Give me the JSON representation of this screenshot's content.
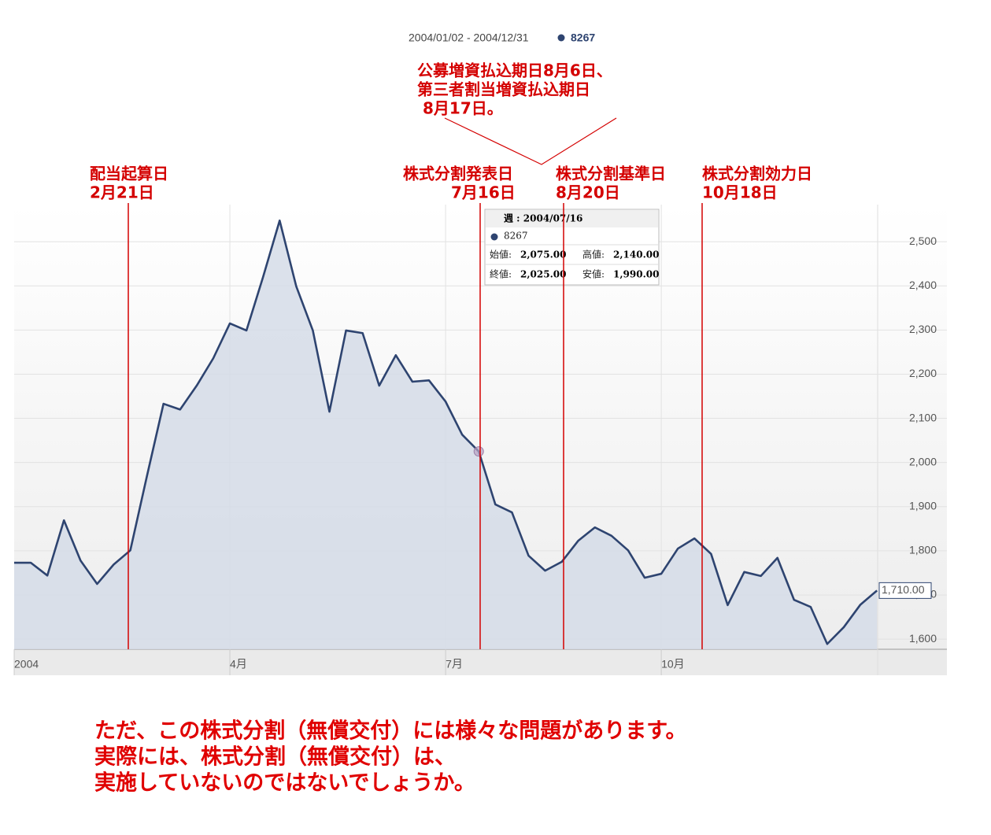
{
  "chart_data": {
    "type": "area",
    "subtitle": "2004/01/02 - 2004/12/31",
    "categories": [
      "2004",
      null,
      null,
      null,
      null,
      null,
      null,
      null,
      null,
      null,
      null,
      null,
      null,
      "4月",
      null,
      null,
      null,
      null,
      null,
      null,
      null,
      null,
      null,
      null,
      null,
      null,
      "7月",
      null,
      null,
      null,
      null,
      null,
      null,
      null,
      null,
      null,
      null,
      null,
      null,
      "10月",
      null,
      null,
      null,
      null,
      null,
      null,
      null,
      null,
      null,
      null,
      null,
      null,
      null
    ],
    "series": [
      {
        "name": "8267",
        "color": "#2e4470",
        "fill": "#d5dce7",
        "values": [
          1773,
          1773,
          1744,
          1869,
          1778,
          1725,
          1769,
          1801,
          1969,
          2133,
          2120,
          2174,
          2236,
          2315,
          2299,
          2420,
          2548,
          2399,
          2299,
          2115,
          2299,
          2293,
          2174,
          2243,
          2183,
          2186,
          2138,
          2063,
          2025,
          1905,
          1887,
          1789,
          1755,
          1775,
          1823,
          1853,
          1834,
          1801,
          1739,
          1748,
          1805,
          1828,
          1793,
          1677,
          1752,
          1743,
          1784,
          1689,
          1673,
          1589,
          1627,
          1678,
          1710
        ],
        "value_labels": [
          null,
          null,
          null,
          null,
          null,
          null,
          null,
          null,
          null,
          null,
          null,
          null,
          null,
          null,
          null,
          null,
          null,
          null,
          null,
          null,
          null,
          null,
          null,
          null,
          null,
          null,
          null,
          null,
          null,
          null,
          null,
          null,
          null,
          null,
          null,
          null,
          null,
          null,
          null,
          null,
          null,
          null,
          null,
          null,
          null,
          null,
          null,
          null,
          null,
          null,
          null,
          null,
          "1,710.00"
        ]
      }
    ],
    "ylim": [
      1577,
      2584
    ],
    "yticks": [
      {
        "value": 1600,
        "label": "1,600"
      },
      {
        "value": 1700,
        "label": "1,700"
      },
      {
        "value": 1800,
        "label": "1,800"
      },
      {
        "value": 1900,
        "label": "1,900"
      },
      {
        "value": 2000,
        "label": "2,000"
      },
      {
        "value": 2100,
        "label": "2,100"
      },
      {
        "value": 2200,
        "label": "2,200"
      },
      {
        "value": 2300,
        "label": "2,300"
      },
      {
        "value": 2400,
        "label": "2,400"
      },
      {
        "value": 2500,
        "label": "2,500"
      }
    ],
    "grid": true,
    "tooltip": {
      "title": "週 : 2004/07/16",
      "series": "8267",
      "fields": [
        {
          "label": "始値:",
          "value": "2,075.00"
        },
        {
          "label": "高値:",
          "value": "2,140.00"
        },
        {
          "label": "終値:",
          "value": "2,025.00"
        },
        {
          "label": "安値:",
          "value": "1,990.00"
        }
      ]
    },
    "annotations": [
      {
        "lines": [
          "配当起算日",
          "2月21日"
        ]
      },
      {
        "lines": [
          "株式分割発表日",
          "7月16日"
        ]
      },
      {
        "lines": [
          "株式分割基準日",
          "8月20日"
        ]
      },
      {
        "lines": [
          "株式分割効力日",
          "10月18日"
        ]
      }
    ],
    "callout": [
      "公募増資払込期日8月6日、",
      "第三者割当増資払込期日",
      "8月17日。"
    ]
  },
  "footer": [
    "ただ、この株式分割（無償交付）には様々な問題があります。",
    "実際には、株式分割（無償交付）は、",
    "実施していないのではないでしょうか。"
  ]
}
